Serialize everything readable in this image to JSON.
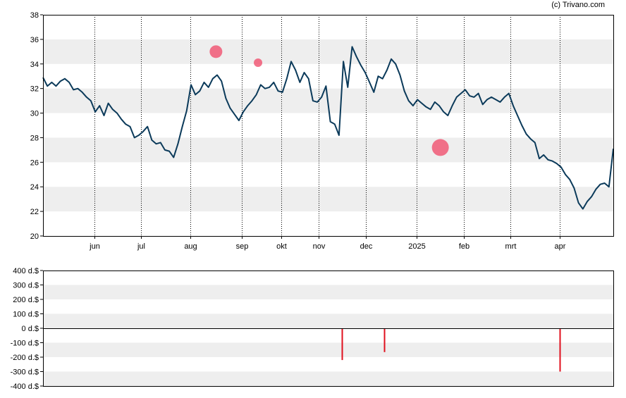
{
  "watermark": "(c) Trivano.com",
  "colors": {
    "band": "#eeeeee",
    "line": "#0b3a5a",
    "marker": "#f0506e",
    "volume": "#e0101e",
    "axis": "#000000"
  },
  "chart_data": [
    {
      "type": "line",
      "ylim": [
        20,
        38
      ],
      "yticks": [
        20,
        22,
        24,
        26,
        28,
        30,
        32,
        34,
        36,
        38
      ],
      "grid": "alternating horizontal bands; dotted vertical month lines",
      "xlim": [
        0,
        244
      ],
      "months": [
        {
          "label": "jun",
          "t": 22
        },
        {
          "label": "jul",
          "t": 42
        },
        {
          "label": "aug",
          "t": 63
        },
        {
          "label": "sep",
          "t": 85
        },
        {
          "label": "okt",
          "t": 102
        },
        {
          "label": "nov",
          "t": 118
        },
        {
          "label": "dec",
          "t": 138
        },
        {
          "label": "2025",
          "t": 160
        },
        {
          "label": "feb",
          "t": 180
        },
        {
          "label": "mrt",
          "t": 200
        },
        {
          "label": "apr",
          "t": 221
        }
      ],
      "series": [
        {
          "points": [
            [
              0,
              32.9
            ],
            [
              1,
              32.2
            ],
            [
              2,
              32.5
            ],
            [
              3,
              32.2
            ],
            [
              4,
              32.6
            ],
            [
              5,
              32.8
            ],
            [
              6,
              32.5
            ],
            [
              7,
              31.9
            ],
            [
              8,
              32.0
            ],
            [
              9,
              31.7
            ],
            [
              10,
              31.3
            ],
            [
              11,
              31.0
            ],
            [
              12,
              30.1
            ],
            [
              13,
              30.6
            ],
            [
              14,
              29.8
            ],
            [
              15,
              30.8
            ],
            [
              16,
              30.3
            ],
            [
              17,
              30.0
            ],
            [
              18,
              29.5
            ],
            [
              19,
              29.1
            ],
            [
              20,
              28.9
            ],
            [
              21,
              28.0
            ],
            [
              22,
              28.2
            ],
            [
              23,
              28.5
            ],
            [
              24,
              28.9
            ],
            [
              25,
              27.8
            ],
            [
              26,
              27.5
            ],
            [
              27,
              27.6
            ],
            [
              28,
              27.0
            ],
            [
              29,
              26.9
            ],
            [
              30,
              26.4
            ],
            [
              31,
              27.5
            ],
            [
              32,
              28.9
            ],
            [
              33,
              30.2
            ],
            [
              34,
              32.3
            ],
            [
              35,
              31.5
            ],
            [
              36,
              31.8
            ],
            [
              37,
              32.5
            ],
            [
              38,
              32.1
            ],
            [
              39,
              32.8
            ],
            [
              40,
              33.1
            ],
            [
              41,
              32.6
            ],
            [
              42,
              31.2
            ],
            [
              43,
              30.4
            ],
            [
              44,
              29.9
            ],
            [
              45,
              29.4
            ],
            [
              46,
              30.1
            ],
            [
              47,
              30.6
            ],
            [
              48,
              31.0
            ],
            [
              49,
              31.5
            ],
            [
              50,
              32.3
            ],
            [
              51,
              32.0
            ],
            [
              52,
              32.1
            ],
            [
              53,
              32.5
            ],
            [
              54,
              31.8
            ],
            [
              55,
              31.7
            ],
            [
              56,
              32.8
            ],
            [
              57,
              34.2
            ],
            [
              58,
              33.5
            ],
            [
              59,
              32.5
            ],
            [
              60,
              33.3
            ],
            [
              61,
              32.8
            ],
            [
              62,
              31.0
            ],
            [
              63,
              30.9
            ],
            [
              64,
              31.3
            ],
            [
              65,
              32.2
            ],
            [
              66,
              29.3
            ],
            [
              67,
              29.1
            ],
            [
              68,
              28.2
            ],
            [
              69,
              34.2
            ],
            [
              70,
              32.1
            ],
            [
              71,
              35.4
            ],
            [
              72,
              34.6
            ],
            [
              73,
              33.9
            ],
            [
              74,
              33.3
            ],
            [
              75,
              32.5
            ],
            [
              76,
              31.7
            ],
            [
              77,
              33.0
            ],
            [
              78,
              32.8
            ],
            [
              79,
              33.5
            ],
            [
              80,
              34.4
            ],
            [
              81,
              34.0
            ],
            [
              82,
              33.1
            ],
            [
              83,
              31.8
            ],
            [
              84,
              31.0
            ],
            [
              85,
              30.6
            ],
            [
              86,
              31.1
            ],
            [
              87,
              30.8
            ],
            [
              88,
              30.5
            ],
            [
              89,
              30.3
            ],
            [
              90,
              30.9
            ],
            [
              91,
              30.6
            ],
            [
              92,
              30.1
            ],
            [
              93,
              29.8
            ],
            [
              94,
              30.6
            ],
            [
              95,
              31.3
            ],
            [
              96,
              31.6
            ],
            [
              97,
              31.9
            ],
            [
              98,
              31.4
            ],
            [
              99,
              31.3
            ],
            [
              100,
              31.6
            ],
            [
              101,
              30.7
            ],
            [
              102,
              31.1
            ],
            [
              103,
              31.3
            ],
            [
              104,
              31.1
            ],
            [
              105,
              30.9
            ],
            [
              106,
              31.3
            ],
            [
              107,
              31.6
            ],
            [
              108,
              30.6
            ],
            [
              109,
              29.8
            ],
            [
              110,
              29.0
            ],
            [
              111,
              28.3
            ],
            [
              112,
              27.9
            ],
            [
              113,
              27.6
            ],
            [
              114,
              26.3
            ],
            [
              115,
              26.6
            ],
            [
              116,
              26.2
            ],
            [
              117,
              26.1
            ],
            [
              118,
              25.9
            ],
            [
              119,
              25.6
            ],
            [
              120,
              25.0
            ],
            [
              121,
              24.6
            ],
            [
              122,
              23.9
            ],
            [
              123,
              22.7
            ],
            [
              124,
              22.2
            ],
            [
              125,
              22.8
            ],
            [
              126,
              23.2
            ],
            [
              127,
              23.8
            ],
            [
              128,
              24.2
            ],
            [
              129,
              24.3
            ],
            [
              130,
              24.0
            ],
            [
              131,
              27.1
            ]
          ],
          "t_offset": "computed"
        }
      ],
      "markers": [
        {
          "date_index": 74,
          "value": 35.0,
          "size": "medium"
        },
        {
          "date_index": 92,
          "value": 34.1,
          "size": "small"
        },
        {
          "date_index": 170,
          "value": 27.2,
          "size": "large"
        }
      ]
    },
    {
      "type": "bar",
      "ylim": [
        -400,
        400
      ],
      "yticks": [
        {
          "v": 400,
          "label": "400 d.$"
        },
        {
          "v": 300,
          "label": "300 d.$"
        },
        {
          "v": 200,
          "label": "200 d.$"
        },
        {
          "v": 100,
          "label": "100 d.$"
        },
        {
          "v": 0,
          "label": "0 d.$"
        },
        {
          "v": -100,
          "label": "-100 d.$"
        },
        {
          "v": -200,
          "label": "-200 d.$"
        },
        {
          "v": -300,
          "label": "-300 d.$"
        },
        {
          "v": -400,
          "label": "-400 d.$"
        }
      ],
      "bars": [
        {
          "t": 128,
          "value": -220
        },
        {
          "t": 146,
          "value": -165
        },
        {
          "t": 221,
          "value": -300
        }
      ]
    }
  ]
}
